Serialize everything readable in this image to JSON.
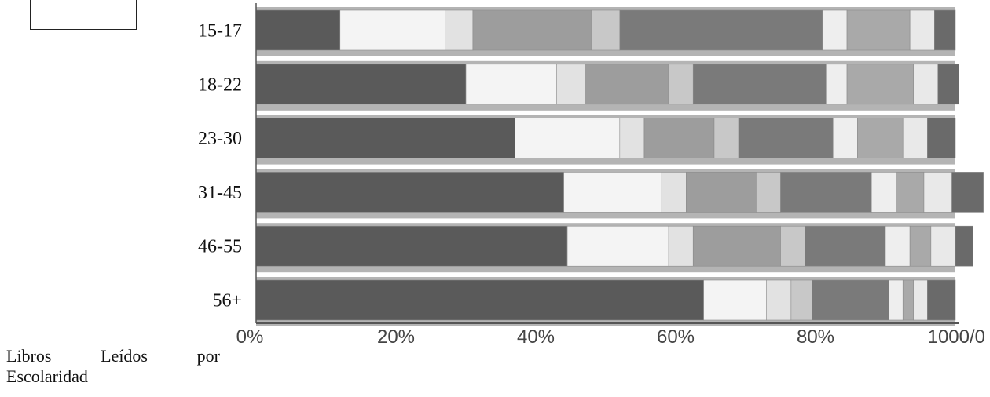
{
  "caption": {
    "words": [
      "Libros",
      "Leídos",
      "por"
    ],
    "line2": "Escolaridad"
  },
  "chart_data": {
    "type": "bar",
    "orientation": "horizontal",
    "stacked": true,
    "percent_axis": true,
    "title": "",
    "xlabel": "",
    "ylabel": "",
    "categories": [
      "15-17",
      "18-22",
      "23-30",
      "31-45",
      "46-55",
      "56+"
    ],
    "x_ticks": [
      "0%",
      "20%",
      "40%",
      "60%",
      "80%",
      "1000/0"
    ],
    "xlim": [
      0,
      100
    ],
    "series": [
      {
        "color": "#5a5a5a",
        "values": [
          12,
          30,
          37,
          44,
          44.5,
          64
        ]
      },
      {
        "color": "#f4f4f4",
        "values": [
          15,
          13,
          15,
          14,
          14.5,
          9
        ]
      },
      {
        "color": "#e2e2e2",
        "values": [
          4,
          4,
          3.5,
          3.5,
          3.5,
          3.5
        ]
      },
      {
        "color": "#9d9d9d",
        "values": [
          17,
          12,
          10,
          10,
          12.5,
          0
        ]
      },
      {
        "color": "#c8c8c8",
        "values": [
          4,
          3.5,
          3.5,
          3.5,
          3.5,
          3
        ]
      },
      {
        "color": "#7a7a7a",
        "values": [
          29,
          19,
          13.5,
          13,
          11.5,
          11
        ]
      },
      {
        "color": "#eeeeee",
        "values": [
          3.5,
          3,
          3.5,
          3.5,
          3.5,
          2
        ]
      },
      {
        "color": "#a9a9a9",
        "values": [
          9,
          9.5,
          6.5,
          4,
          3,
          1.5
        ]
      },
      {
        "color": "#e9e9e9",
        "values": [
          3.5,
          3.5,
          3.5,
          4,
          3.5,
          2
        ]
      },
      {
        "color": "#6a6a6a",
        "values": [
          3,
          3,
          4,
          4.5,
          2.5,
          4
        ]
      }
    ]
  },
  "colors": {
    "track": "#b4b4b4",
    "axis": "#555555",
    "text": "#111111"
  }
}
